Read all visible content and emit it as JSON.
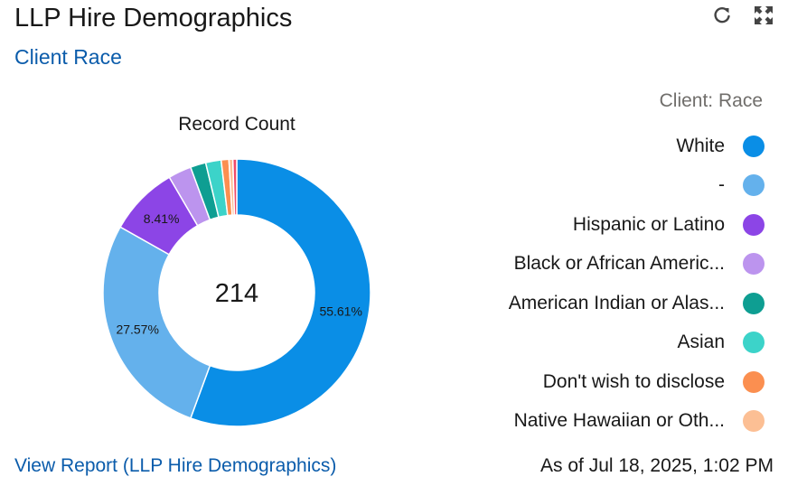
{
  "header": {
    "title": "LLP Hire Demographics",
    "subtitle": "Client Race",
    "refresh_icon": "refresh-icon",
    "expand_icon": "expand-icon"
  },
  "chart_data": {
    "type": "pie",
    "variant": "donut",
    "title": "Record Count",
    "center_label": "214",
    "legend_title": "Client: Race",
    "legend_position": "right",
    "total": 214,
    "slices": [
      {
        "label": "White",
        "value": 119,
        "percent_label": "55.61%",
        "color": "#0a8ee6"
      },
      {
        "label": "-",
        "value": 59,
        "percent_label": "27.57%",
        "color": "#64b1ec"
      },
      {
        "label": "Hispanic or Latino",
        "value": 18,
        "percent_label": "8.41%",
        "color": "#8c45e6"
      },
      {
        "label": "Black or African Americ...",
        "value": 6,
        "percent_label": "",
        "color": "#bc94ee"
      },
      {
        "label": "American Indian or Alas...",
        "value": 4,
        "percent_label": "",
        "color": "#0e9e92"
      },
      {
        "label": "Asian",
        "value": 4,
        "percent_label": "",
        "color": "#3cd3c9"
      },
      {
        "label": "Don't wish to disclose",
        "value": 2,
        "percent_label": "",
        "color": "#fb8f50"
      },
      {
        "label": "Native Hawaiian or Oth...",
        "value": 1,
        "percent_label": "",
        "color": "#fcbf94"
      },
      {
        "label": "",
        "value": 1,
        "percent_label": "",
        "color": "#ef4b6a"
      }
    ]
  },
  "footer": {
    "report_link": "View Report (LLP Hire Demographics)",
    "timestamp": "As of Jul 18, 2025, 1:02 PM"
  }
}
